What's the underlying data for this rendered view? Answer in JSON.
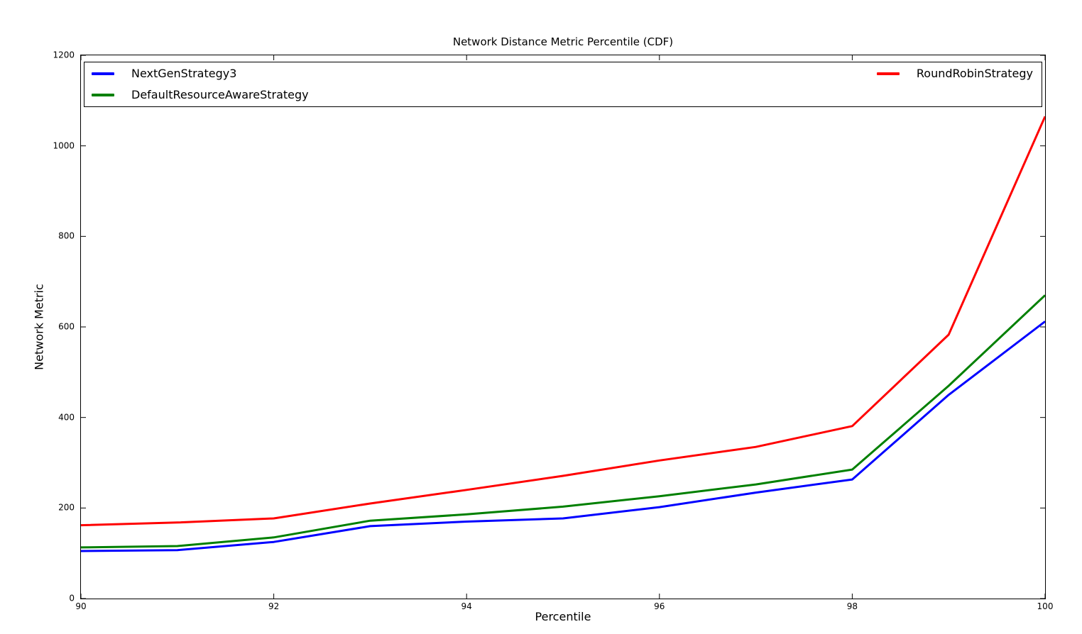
{
  "chart_data": {
    "type": "line",
    "title": "Network Distance Metric Percentile (CDF)",
    "xlabel": "Percentile",
    "ylabel": "Network Metric",
    "xlim": [
      90,
      100
    ],
    "ylim": [
      0,
      1200
    ],
    "xticks": [
      "90",
      "92",
      "94",
      "96",
      "98",
      "100"
    ],
    "xtick_values": [
      90,
      92,
      94,
      96,
      98,
      100
    ],
    "yticks": [
      "0",
      "200",
      "400",
      "600",
      "800",
      "1000",
      "1200"
    ],
    "ytick_values": [
      0,
      200,
      400,
      600,
      800,
      1000,
      1200
    ],
    "grid": false,
    "tick_direction": "in",
    "legend_position": "top-inside, full plot width, two columns",
    "x": [
      90,
      91,
      92,
      93,
      94,
      95,
      96,
      97,
      98,
      99,
      100
    ],
    "series": [
      {
        "name": "NextGenStrategy3",
        "color": "#0000ff",
        "line_width": 3,
        "values": [
          105,
          107,
          125,
          160,
          170,
          177,
          202,
          234,
          263,
          450,
          612
        ]
      },
      {
        "name": "DefaultResourceAwareStrategy",
        "color": "#008000",
        "line_width": 3,
        "values": [
          113,
          116,
          135,
          172,
          186,
          203,
          226,
          252,
          285,
          470,
          670
        ]
      },
      {
        "name": "RoundRobinStrategy",
        "color": "#ff0000",
        "line_width": 3,
        "values": [
          162,
          168,
          177,
          210,
          240,
          271,
          305,
          335,
          381,
          583,
          1065
        ]
      }
    ],
    "legend": [
      {
        "label": "NextGenStrategy3",
        "color": "#0000ff",
        "column": "left"
      },
      {
        "label": "DefaultResourceAwareStrategy",
        "color": "#008000",
        "column": "left"
      },
      {
        "label": "RoundRobinStrategy",
        "color": "#ff0000",
        "column": "right"
      }
    ],
    "axis_color": "#000000"
  }
}
